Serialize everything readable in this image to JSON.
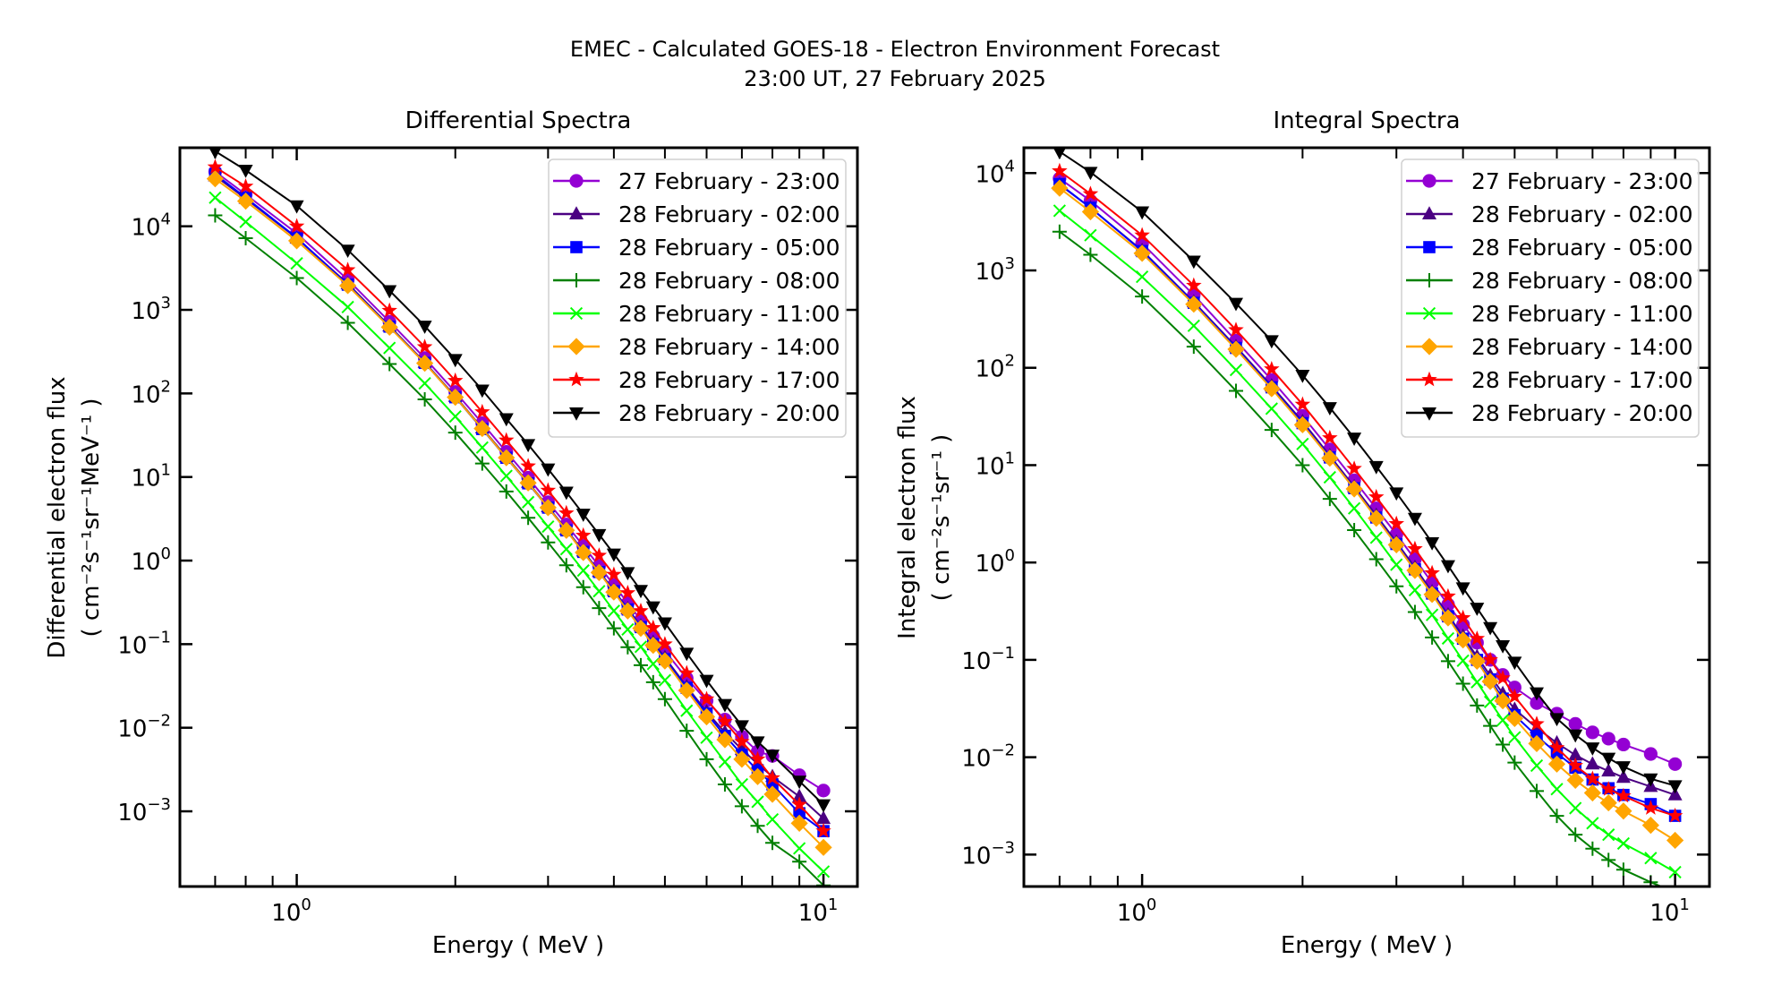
{
  "figure": {
    "suptitle_line1": "EMEC - Calculated GOES-18 - Electron Environment Forecast",
    "suptitle_line2": "23:00 UT, 27 February 2025"
  },
  "chart_data": [
    {
      "type": "line",
      "title": "Differential Spectra",
      "xlabel": "Energy ( MeV )",
      "ylabel_line1": "Differential electron flux",
      "ylabel_line2": "( cm⁻²s⁻¹sr⁻¹MeV⁻¹ )",
      "xscale": "log",
      "yscale": "log",
      "xlim": [
        0.6,
        11.6
      ],
      "ylim": [
        0.000126,
        87000
      ],
      "xticks": [
        {
          "value": 1,
          "label": "10",
          "exp": "0"
        },
        {
          "value": 10,
          "label": "10",
          "exp": "1"
        }
      ],
      "yticks": [
        {
          "value": 0.001,
          "label": "10",
          "exp": "−3"
        },
        {
          "value": 0.01,
          "label": "10",
          "exp": "−2"
        },
        {
          "value": 0.1,
          "label": "10",
          "exp": "−1"
        },
        {
          "value": 1,
          "label": "10",
          "exp": "0"
        },
        {
          "value": 10,
          "label": "10",
          "exp": "1"
        },
        {
          "value": 100,
          "label": "10",
          "exp": "2"
        },
        {
          "value": 1000,
          "label": "10",
          "exp": "3"
        },
        {
          "value": 10000,
          "label": "10",
          "exp": "4"
        }
      ],
      "grid": false,
      "legend_position": "top-right",
      "x": [
        0.7,
        0.8,
        1.0,
        1.25,
        1.5,
        1.75,
        2.0,
        2.25,
        2.5,
        2.75,
        3.0,
        3.25,
        3.5,
        3.75,
        4.0,
        4.25,
        4.5,
        4.75,
        5.0,
        5.5,
        6.0,
        6.5,
        7.0,
        7.5,
        8.0,
        9.0,
        10.0
      ],
      "series": [
        {
          "name": "27 February - 23:00",
          "color": "#9400d3",
          "marker": "circle",
          "values": [
            45000,
            24000,
            8200,
            2300,
            720,
            265,
            104,
            44,
            20,
            9.8,
            5.0,
            2.7,
            1.5,
            0.86,
            0.51,
            0.31,
            0.195,
            0.125,
            0.083,
            0.039,
            0.021,
            0.0125,
            0.0078,
            0.0052,
            0.0046,
            0.0027,
            0.00177
          ]
        },
        {
          "name": "28 February - 02:00",
          "color": "#4b0082",
          "marker": "triangle-up",
          "values": [
            40000,
            21500,
            7200,
            2050,
            640,
            235,
            92,
            38.5,
            17.5,
            8.6,
            4.4,
            2.35,
            1.3,
            0.74,
            0.44,
            0.265,
            0.165,
            0.105,
            0.069,
            0.031,
            0.0155,
            0.0088,
            0.0055,
            0.0037,
            0.0026,
            0.0015,
            0.00082
          ]
        },
        {
          "name": "28 February - 05:00",
          "color": "#0000ff",
          "marker": "square",
          "values": [
            42000,
            22000,
            7300,
            2000,
            630,
            232,
            90,
            37.5,
            17,
            8.4,
            4.3,
            2.3,
            1.27,
            0.73,
            0.43,
            0.26,
            0.16,
            0.1,
            0.066,
            0.03,
            0.0148,
            0.008,
            0.0048,
            0.0031,
            0.0021,
            0.00095,
            0.00058
          ]
        },
        {
          "name": "28 February - 08:00",
          "color": "#008000",
          "marker": "plus",
          "values": [
            13500,
            7200,
            2400,
            700,
            225,
            85,
            34,
            14.5,
            6.7,
            3.25,
            1.65,
            0.88,
            0.48,
            0.27,
            0.155,
            0.092,
            0.056,
            0.035,
            0.022,
            0.0092,
            0.0042,
            0.0021,
            0.00115,
            0.00067,
            0.00042,
            0.00025,
            0.00013
          ]
        },
        {
          "name": "28 February - 11:00",
          "color": "#00ff00",
          "marker": "x",
          "values": [
            22000,
            11300,
            3600,
            1080,
            350,
            132,
            53,
            22.5,
            10.3,
            5.0,
            2.55,
            1.37,
            0.76,
            0.43,
            0.25,
            0.15,
            0.093,
            0.058,
            0.037,
            0.016,
            0.0076,
            0.0039,
            0.0021,
            0.0013,
            0.0008,
            0.00036,
            0.00019
          ]
        },
        {
          "name": "28 February - 14:00",
          "color": "#ffa500",
          "marker": "diamond",
          "values": [
            37000,
            20000,
            6700,
            1950,
            620,
            230,
            90,
            38,
            17,
            8.5,
            4.3,
            2.3,
            1.25,
            0.72,
            0.42,
            0.25,
            0.155,
            0.097,
            0.063,
            0.028,
            0.0135,
            0.0072,
            0.0042,
            0.0026,
            0.0016,
            0.00072,
            0.00037
          ]
        },
        {
          "name": "28 February - 17:00",
          "color": "#ff0000",
          "marker": "star",
          "values": [
            51000,
            30000,
            10000,
            3000,
            980,
            360,
            142,
            60,
            27.5,
            13.5,
            6.9,
            3.7,
            2.0,
            1.15,
            0.68,
            0.41,
            0.25,
            0.157,
            0.1,
            0.045,
            0.022,
            0.0118,
            0.0068,
            0.0042,
            0.0025,
            0.0012,
            0.00058
          ]
        },
        {
          "name": "28 February - 20:00",
          "color": "#000000",
          "marker": "triangle-down",
          "values": [
            79000,
            47000,
            17600,
            5200,
            1700,
            640,
            255,
            110,
            50,
            24.5,
            12.5,
            6.6,
            3.6,
            2.05,
            1.2,
            0.72,
            0.44,
            0.28,
            0.18,
            0.078,
            0.037,
            0.019,
            0.0106,
            0.0068,
            0.0047,
            0.0023,
            0.0012
          ]
        }
      ]
    },
    {
      "type": "line",
      "title": "Integral Spectra",
      "xlabel": "Energy ( MeV )",
      "ylabel_line1": "Integral electron flux",
      "ylabel_line2": "( cm⁻²s⁻¹sr⁻¹ )",
      "xscale": "log",
      "yscale": "log",
      "xlim": [
        0.6,
        11.6
      ],
      "ylim": [
        0.00047,
        18200
      ],
      "xticks": [
        {
          "value": 1,
          "label": "10",
          "exp": "0"
        },
        {
          "value": 10,
          "label": "10",
          "exp": "1"
        }
      ],
      "yticks": [
        {
          "value": 0.001,
          "label": "10",
          "exp": "−3"
        },
        {
          "value": 0.01,
          "label": "10",
          "exp": "−2"
        },
        {
          "value": 0.1,
          "label": "10",
          "exp": "−1"
        },
        {
          "value": 1,
          "label": "10",
          "exp": "0"
        },
        {
          "value": 10,
          "label": "10",
          "exp": "1"
        },
        {
          "value": 100,
          "label": "10",
          "exp": "2"
        },
        {
          "value": 1000,
          "label": "10",
          "exp": "3"
        },
        {
          "value": 10000,
          "label": "10",
          "exp": "4"
        }
      ],
      "grid": false,
      "legend_position": "top-right",
      "x": [
        0.7,
        0.8,
        1.0,
        1.25,
        1.5,
        1.75,
        2.0,
        2.25,
        2.5,
        2.75,
        3.0,
        3.25,
        3.5,
        3.75,
        4.0,
        4.25,
        4.5,
        4.75,
        5.0,
        5.5,
        6.0,
        6.5,
        7.0,
        7.5,
        8.0,
        9.0,
        10.0
      ],
      "series": [
        {
          "name": "27 February - 23:00",
          "color": "#9400d3",
          "marker": "circle",
          "values": [
            8800,
            5200,
            1900,
            560,
            190,
            75,
            32,
            14.5,
            7.0,
            3.6,
            1.95,
            1.08,
            0.62,
            0.37,
            0.23,
            0.15,
            0.1,
            0.07,
            0.052,
            0.036,
            0.028,
            0.022,
            0.018,
            0.0155,
            0.0135,
            0.0108,
            0.0085
          ]
        },
        {
          "name": "28 February - 02:00",
          "color": "#4b0082",
          "marker": "triangle-up",
          "values": [
            7600,
            4400,
            1600,
            475,
            165,
            65,
            28,
            12.5,
            6.0,
            3.05,
            1.62,
            0.89,
            0.5,
            0.29,
            0.175,
            0.108,
            0.069,
            0.045,
            0.031,
            0.02,
            0.014,
            0.0105,
            0.0085,
            0.0072,
            0.0062,
            0.005,
            0.0041
          ]
        },
        {
          "name": "28 February - 05:00",
          "color": "#0000ff",
          "marker": "square",
          "values": [
            7700,
            4400,
            1580,
            465,
            160,
            63,
            27,
            12.0,
            5.8,
            2.9,
            1.55,
            0.85,
            0.48,
            0.28,
            0.165,
            0.1,
            0.063,
            0.04,
            0.027,
            0.0165,
            0.011,
            0.0078,
            0.0059,
            0.0048,
            0.0041,
            0.0033,
            0.0025
          ]
        },
        {
          "name": "28 February - 08:00",
          "color": "#008000",
          "marker": "plus",
          "values": [
            2500,
            1450,
            540,
            165,
            58,
            23,
            10,
            4.5,
            2.15,
            1.08,
            0.57,
            0.31,
            0.17,
            0.097,
            0.057,
            0.034,
            0.021,
            0.0135,
            0.0088,
            0.0045,
            0.0025,
            0.0016,
            0.00115,
            0.00088,
            0.0007,
            0.00052,
            0.00041
          ]
        },
        {
          "name": "28 February - 11:00",
          "color": "#00ff00",
          "marker": "x",
          "values": [
            4100,
            2300,
            860,
            270,
            95,
            38,
            16.5,
            7.5,
            3.6,
            1.8,
            0.95,
            0.52,
            0.29,
            0.166,
            0.098,
            0.059,
            0.037,
            0.024,
            0.016,
            0.0082,
            0.0047,
            0.003,
            0.0021,
            0.0016,
            0.0013,
            0.00092,
            0.00066
          ]
        },
        {
          "name": "28 February - 14:00",
          "color": "#ffa500",
          "marker": "diamond",
          "values": [
            7000,
            4000,
            1500,
            450,
            155,
            61,
            26,
            11.8,
            5.7,
            2.85,
            1.52,
            0.83,
            0.47,
            0.27,
            0.16,
            0.097,
            0.06,
            0.038,
            0.025,
            0.0138,
            0.0085,
            0.0058,
            0.0043,
            0.0034,
            0.0028,
            0.002,
            0.0014
          ]
        },
        {
          "name": "28 February - 17:00",
          "color": "#ff0000",
          "marker": "star",
          "values": [
            10500,
            6100,
            2300,
            700,
            245,
            97,
            42,
            19,
            9.2,
            4.7,
            2.5,
            1.38,
            0.78,
            0.45,
            0.27,
            0.165,
            0.1,
            0.065,
            0.042,
            0.022,
            0.0125,
            0.0082,
            0.006,
            0.0047,
            0.004,
            0.003,
            0.0025
          ]
        },
        {
          "name": "28 February - 20:00",
          "color": "#000000",
          "marker": "triangle-down",
          "values": [
            16600,
            10200,
            4000,
            1250,
            460,
            190,
            84,
            39,
            19,
            9.7,
            5.2,
            2.85,
            1.6,
            0.93,
            0.55,
            0.34,
            0.215,
            0.14,
            0.095,
            0.046,
            0.025,
            0.017,
            0.0125,
            0.0098,
            0.008,
            0.006,
            0.0051
          ]
        }
      ]
    }
  ]
}
